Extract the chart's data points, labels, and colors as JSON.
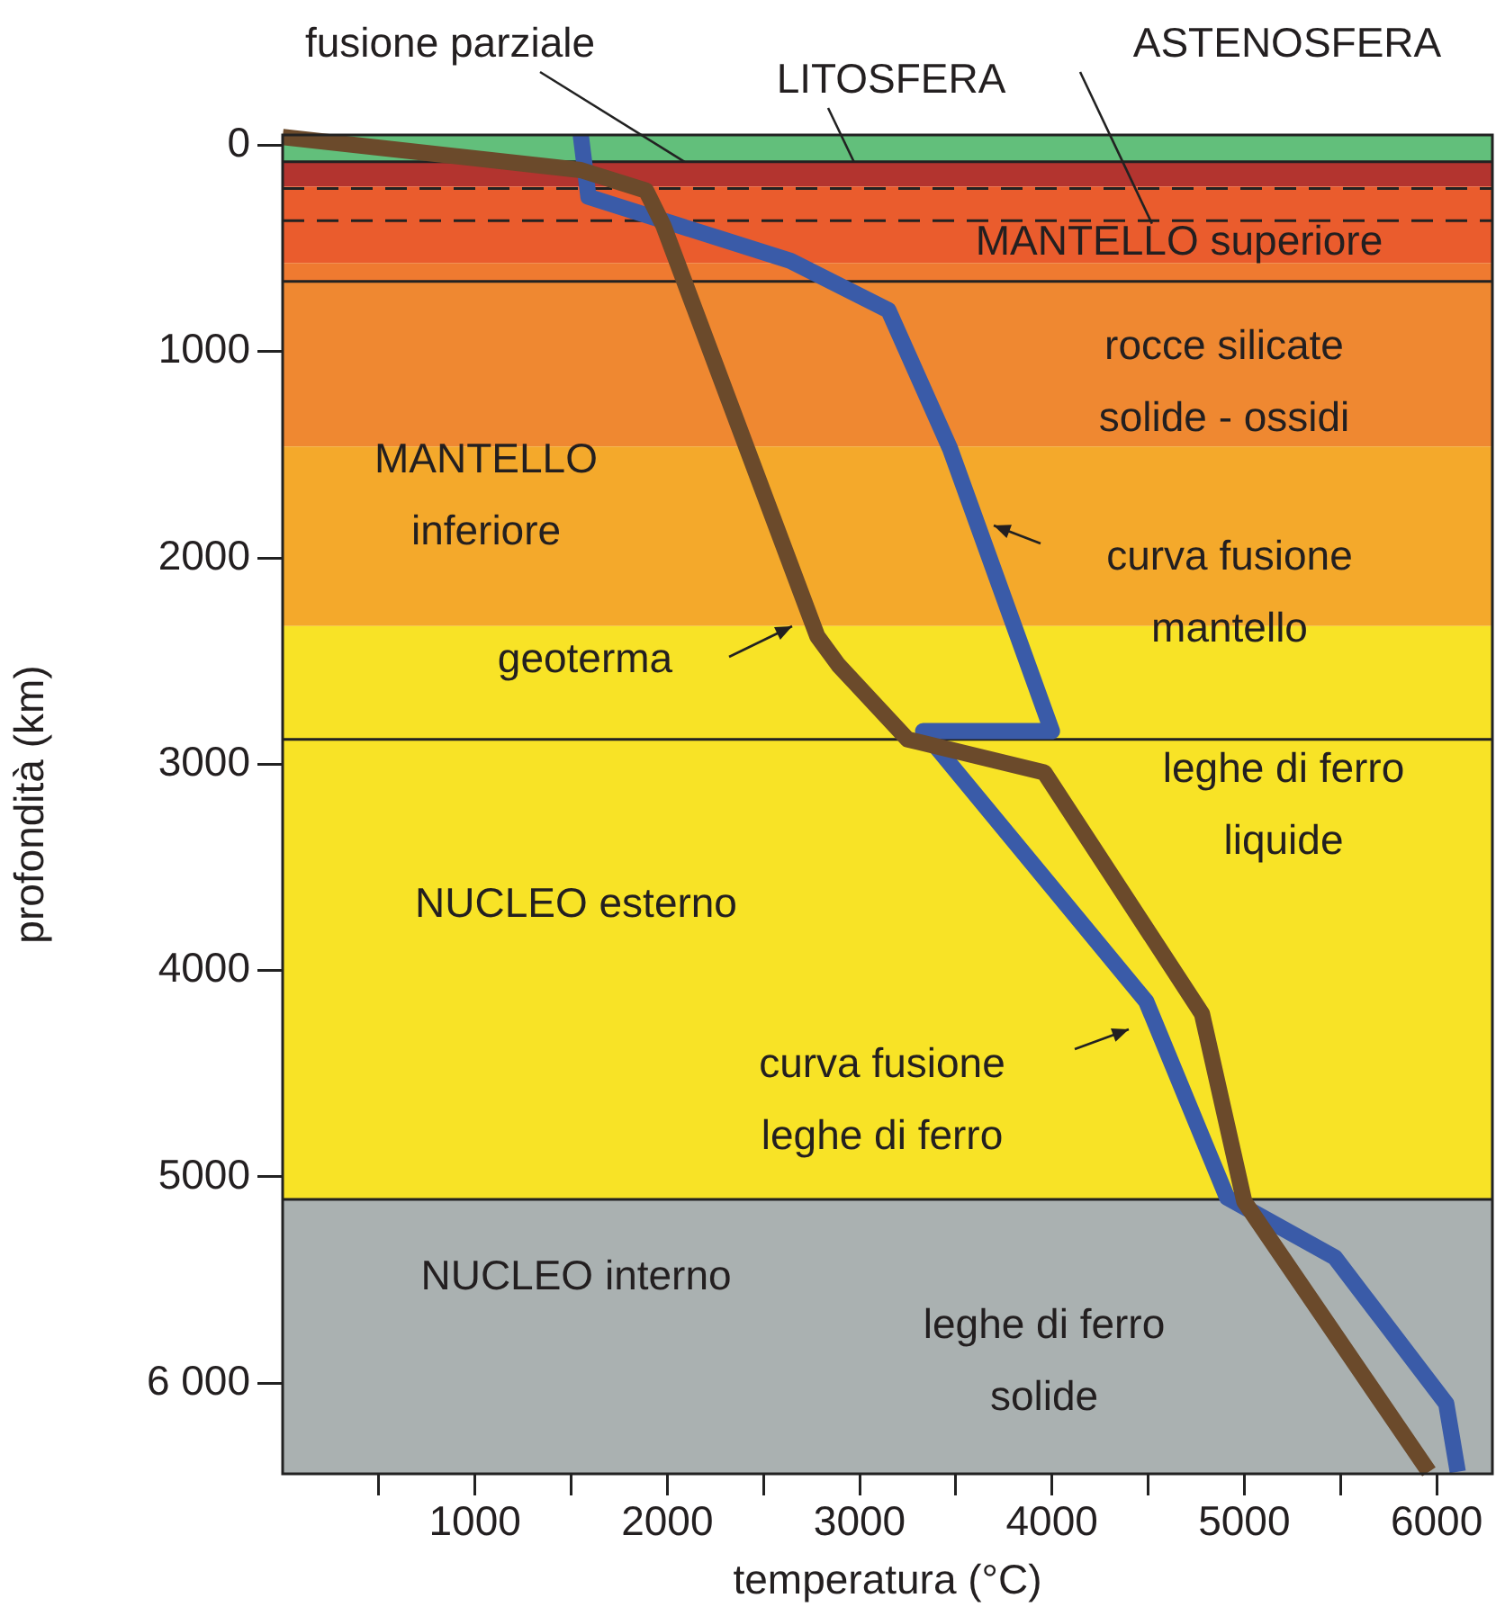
{
  "chart_data": {
    "type": "line",
    "xlabel": "temperatura (°C)",
    "ylabel": "profondità (km)",
    "xlim": [
      0,
      6290
    ],
    "xticks": [
      {
        "value": 500,
        "label": null
      },
      1000,
      {
        "value": 1500,
        "label": null
      },
      2000,
      {
        "value": 2500,
        "label": null
      },
      3000,
      {
        "value": 3500,
        "label": null
      },
      4000,
      {
        "value": 4500,
        "label": null
      },
      5000,
      {
        "value": 5500,
        "label": null
      },
      6000
    ],
    "ylim": [
      6440,
      -50
    ],
    "yticks": [
      0,
      1000,
      2000,
      3000,
      4000,
      5000,
      {
        "value": 6000,
        "label": "6 000"
      }
    ],
    "grid": false,
    "legend": false,
    "line_style": "solid",
    "series": [
      {
        "color": "#6b4a2b",
        "x": [
          0,
          1550,
          1890,
          1980,
          2780,
          2890,
          3250,
          3960,
          4780,
          5000,
          5960
        ],
        "values": [
          -40,
          120,
          220,
          390,
          2380,
          2520,
          2880,
          3040,
          4210,
          5120,
          6430
        ]
      },
      {
        "color": "#3a5ba8",
        "x": [
          1550,
          1590,
          2640,
          3150,
          3470,
          4000,
          3330,
          4490,
          4910,
          5470,
          6050,
          6110
        ],
        "values": [
          -50,
          250,
          560,
          800,
          1470,
          2840,
          2840,
          4150,
          5100,
          5390,
          6100,
          6430
        ]
      }
    ],
    "bands": [
      {
        "axis": "y",
        "from": -50,
        "to": 80,
        "color": "#62bf7b"
      },
      {
        "axis": "y",
        "from": 80,
        "to": 200,
        "color": "#b3342f"
      },
      {
        "axis": "y",
        "from": 200,
        "to": 570,
        "color": "#ea5c2d"
      },
      {
        "axis": "y",
        "from": 570,
        "to": 660,
        "color": "#ef7a30"
      },
      {
        "axis": "y",
        "from": 660,
        "to": 1460,
        "color": "#ef8831"
      },
      {
        "axis": "y",
        "from": 1460,
        "to": 2330,
        "color": "#f4a92b"
      },
      {
        "axis": "y",
        "from": 2330,
        "to": 2880,
        "color": "#f8e326"
      },
      {
        "axis": "y",
        "from": 2880,
        "to": 5110,
        "color": "#f8e326"
      },
      {
        "axis": "y",
        "from": 5110,
        "to": 6440,
        "color": "#aab1b1"
      }
    ],
    "ref_lines": [
      {
        "axis": "y",
        "value": 80,
        "color": "#222222",
        "line_style": "solid"
      },
      {
        "axis": "y",
        "value": 210,
        "color": "#222222",
        "line_style": "dashed"
      },
      {
        "axis": "y",
        "value": 365,
        "color": "#222222",
        "line_style": "dashed"
      },
      {
        "axis": "y",
        "value": 660,
        "color": "#222222",
        "line_style": "solid"
      },
      {
        "axis": "y",
        "value": 2880,
        "color": "#222222",
        "line_style": "solid"
      },
      {
        "axis": "y",
        "value": 5110,
        "color": "#222222",
        "line_style": "solid"
      }
    ],
    "annotations": [
      {
        "text": "fusione parziale",
        "x": 2090,
        "y": 80
      },
      {
        "text": "LITOSFERA",
        "x": 2970,
        "y": 80
      },
      {
        "text": "ASTENOSFERA",
        "x": 4520,
        "y": 380
      },
      "MANTELLO superiore",
      "rocce silicate\nsolide - ossidi",
      "MANTELLO\ninferiore",
      "curva fusione\nmantello",
      "geoterma",
      "leghe di ferro\nliquide",
      "NUCLEO esterno",
      "curva fusione\nleghe di ferro",
      "NUCLEO interno",
      "leghe di ferro\nsolide"
    ]
  }
}
